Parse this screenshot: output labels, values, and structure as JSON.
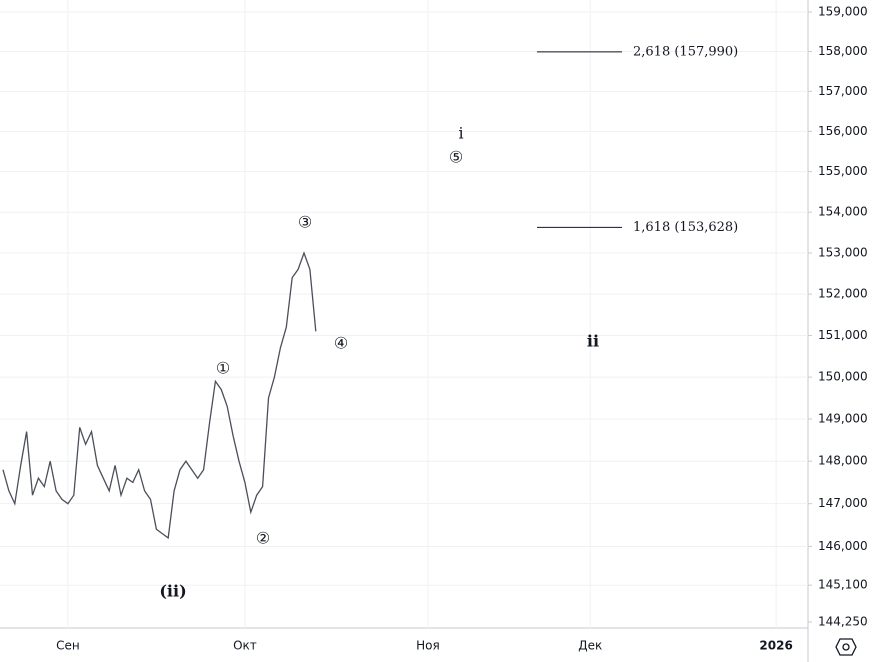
{
  "chart_data": {
    "type": "line",
    "log": true,
    "grid": true,
    "x": [
      -11,
      -10,
      -9,
      -8,
      -7,
      -6,
      -5,
      -4,
      -3,
      -2,
      -1,
      0,
      1,
      2,
      3,
      4,
      5,
      6,
      7,
      8,
      9,
      10,
      11,
      12,
      13,
      14,
      15,
      16,
      17,
      18,
      19,
      20,
      21,
      22,
      23,
      24,
      25,
      26,
      27,
      28,
      29,
      30,
      31,
      32,
      33,
      34,
      35,
      36,
      37,
      38,
      39,
      40,
      41,
      42
    ],
    "series": [
      {
        "color": "#4a4f5a",
        "values": [
          147800,
          147300,
          147000,
          147900,
          148700,
          147200,
          147600,
          147400,
          148000,
          147300,
          147100,
          147000,
          147200,
          148800,
          148400,
          148700,
          147900,
          147600,
          147300,
          147900,
          147200,
          147600,
          147500,
          147800,
          147300,
          147100,
          146400,
          146300,
          146200,
          147300,
          147800,
          148000,
          147800,
          147600,
          147800,
          148900,
          149900,
          149700,
          149300,
          148600,
          148000,
          147500,
          146800,
          147200,
          147400,
          149500,
          150000,
          150700,
          151200,
          152400,
          152600,
          153000,
          152600,
          151100
        ]
      }
    ],
    "xlim": [
      -11.5,
      125.4
    ],
    "xticks": [
      {
        "value": 0,
        "label": "Сен"
      },
      {
        "value": 30,
        "label": "Окт"
      },
      {
        "value": 61,
        "label": "Ноя"
      },
      {
        "value": 88.5,
        "label": "Дек"
      },
      {
        "value": 120,
        "label": "2026"
      }
    ],
    "ylim": [
      144250,
      159000
    ],
    "yticks": [
      {
        "value": 159000,
        "label": "159,000"
      },
      {
        "value": 158000,
        "label": "158,000"
      },
      {
        "value": 157000,
        "label": "157,000"
      },
      {
        "value": 156000,
        "label": "156,000"
      },
      {
        "value": 155000,
        "label": "155,000"
      },
      {
        "value": 154000,
        "label": "154,000"
      },
      {
        "value": 153000,
        "label": "153,000"
      },
      {
        "value": 152000,
        "label": "152,000"
      },
      {
        "value": 151000,
        "label": "151,000"
      },
      {
        "value": 150000,
        "label": "150,000"
      },
      {
        "value": 149000,
        "label": "149,000"
      },
      {
        "value": 148000,
        "label": "148,000"
      },
      {
        "value": 147000,
        "label": "147,000"
      },
      {
        "value": 146000,
        "label": "146,000"
      },
      {
        "value": 145100,
        "label": "145,100"
      },
      {
        "value": 144250,
        "label": "144,250"
      }
    ],
    "levels": [
      {
        "label": "2,618 (157,990)",
        "value": 157990
      },
      {
        "label": "1,618 (153,628)",
        "value": 153628
      }
    ],
    "annotations": [
      "(ii)",
      "①",
      "②",
      "③",
      "④",
      "i",
      "⑤",
      "ii"
    ]
  }
}
